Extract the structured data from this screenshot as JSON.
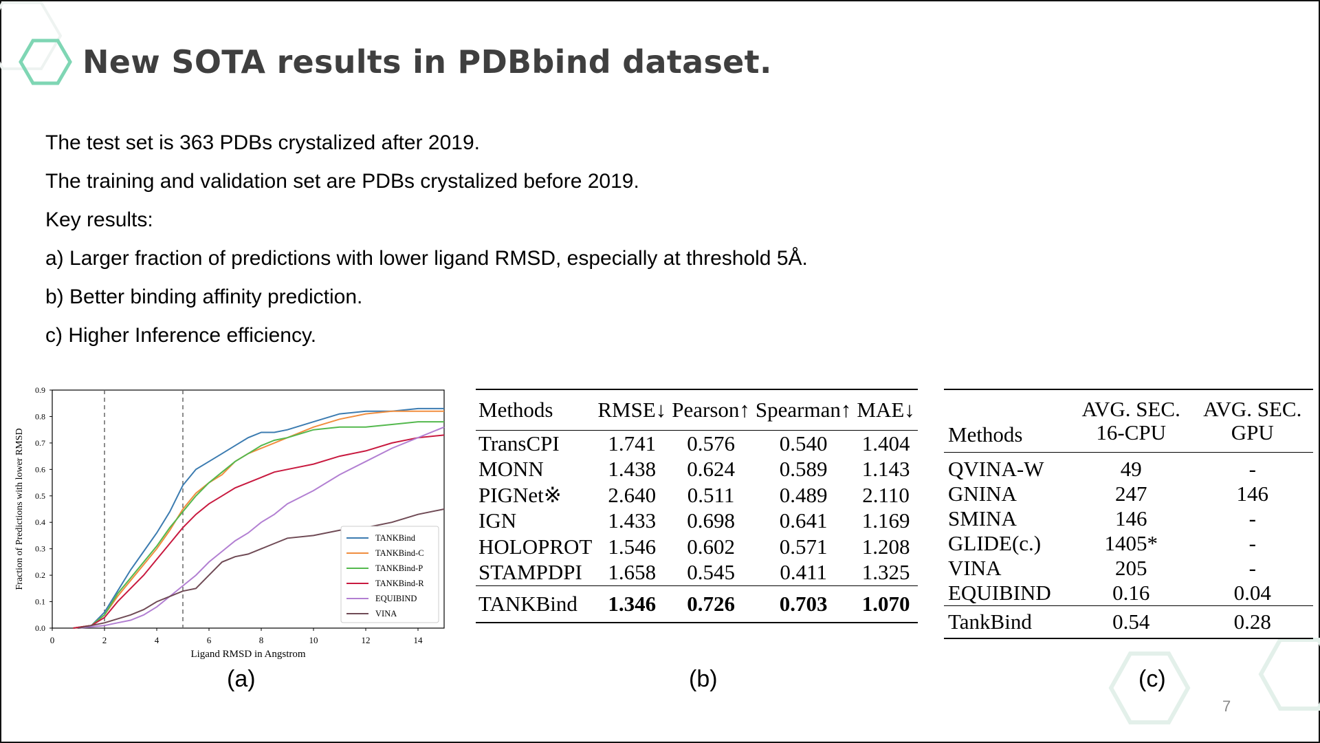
{
  "slide": {
    "title": "New SOTA results in PDBbind dataset.",
    "bullets": [
      "The test set is 363 PDBs crystalized after 2019.",
      "The training and validation set are PDBs crystalized before 2019.",
      "Key results:",
      "a) Larger fraction of predictions with lower ligand RMSD, especially at threshold 5Å.",
      "b) Better binding affinity prediction.",
      "c) Higher Inference efficiency."
    ],
    "captions": [
      "(a)",
      "(b)",
      "(c)"
    ],
    "page_number": "7",
    "accent_color": "#7fd6b4"
  },
  "chart_data": {
    "type": "line",
    "title": "",
    "xlabel": "Ligand RMSD in Angstrom",
    "ylabel": "Fraction of Predictions with lower RMSD",
    "xlim": [
      0,
      15
    ],
    "ylim": [
      0,
      0.9
    ],
    "xticks": [
      "0",
      "2",
      "4",
      "6",
      "8",
      "10",
      "12",
      "14"
    ],
    "yticks": [
      "0.0",
      "0.1",
      "0.2",
      "0.3",
      "0.4",
      "0.5",
      "0.6",
      "0.7",
      "0.8",
      "0.9"
    ],
    "vlines": [
      2,
      5
    ],
    "legend_position": "bottom-right",
    "grid": false,
    "series": [
      {
        "name": "TANKBind",
        "color": "#3b7bb0",
        "x": [
          0.8,
          1.5,
          2,
          2.5,
          3,
          3.5,
          4,
          4.5,
          5,
          5.5,
          6,
          6.5,
          7,
          7.5,
          8,
          8.5,
          9,
          10,
          11,
          12,
          13,
          14,
          15
        ],
        "y": [
          0,
          0.01,
          0.06,
          0.14,
          0.22,
          0.29,
          0.36,
          0.44,
          0.54,
          0.6,
          0.63,
          0.66,
          0.69,
          0.72,
          0.74,
          0.74,
          0.75,
          0.78,
          0.81,
          0.82,
          0.82,
          0.83,
          0.83
        ]
      },
      {
        "name": "TANKBind-C",
        "color": "#f08d3e",
        "x": [
          0.8,
          1.5,
          2,
          2.5,
          3,
          3.5,
          4,
          4.5,
          5,
          5.5,
          6,
          6.5,
          7,
          7.5,
          8,
          8.5,
          9,
          10,
          11,
          12,
          13,
          14,
          15
        ],
        "y": [
          0,
          0.01,
          0.05,
          0.12,
          0.18,
          0.24,
          0.3,
          0.37,
          0.45,
          0.51,
          0.55,
          0.58,
          0.63,
          0.66,
          0.68,
          0.7,
          0.72,
          0.76,
          0.79,
          0.81,
          0.82,
          0.82,
          0.82
        ]
      },
      {
        "name": "TANKBind-P",
        "color": "#53b84d",
        "x": [
          0.8,
          1.5,
          2,
          2.5,
          3,
          3.5,
          4,
          4.5,
          5,
          5.5,
          6,
          6.5,
          7,
          7.5,
          8,
          8.5,
          9,
          10,
          11,
          12,
          13,
          14,
          15
        ],
        "y": [
          0,
          0.01,
          0.05,
          0.13,
          0.19,
          0.25,
          0.31,
          0.38,
          0.44,
          0.5,
          0.55,
          0.59,
          0.63,
          0.66,
          0.69,
          0.71,
          0.72,
          0.75,
          0.76,
          0.76,
          0.77,
          0.78,
          0.78
        ]
      },
      {
        "name": "TANKBind-R",
        "color": "#c8193f",
        "x": [
          0.8,
          1.5,
          2,
          2.5,
          3,
          3.5,
          4,
          4.5,
          5,
          5.5,
          6,
          6.5,
          7,
          7.5,
          8,
          8.5,
          9,
          10,
          11,
          12,
          13,
          14,
          15
        ],
        "y": [
          0,
          0.01,
          0.04,
          0.1,
          0.15,
          0.2,
          0.26,
          0.32,
          0.38,
          0.43,
          0.47,
          0.5,
          0.53,
          0.55,
          0.57,
          0.59,
          0.6,
          0.62,
          0.65,
          0.67,
          0.7,
          0.72,
          0.73
        ]
      },
      {
        "name": "EQUIBIND",
        "color": "#b27fd2",
        "x": [
          1,
          2,
          2.5,
          3,
          3.5,
          4,
          4.5,
          5,
          5.5,
          6,
          6.5,
          7,
          7.5,
          8,
          8.5,
          9,
          10,
          11,
          12,
          13,
          14,
          15
        ],
        "y": [
          0,
          0.01,
          0.02,
          0.03,
          0.05,
          0.08,
          0.12,
          0.16,
          0.2,
          0.25,
          0.29,
          0.33,
          0.36,
          0.4,
          0.43,
          0.47,
          0.52,
          0.58,
          0.63,
          0.68,
          0.72,
          0.76
        ]
      },
      {
        "name": "VINA",
        "color": "#6f4a55",
        "x": [
          1,
          2,
          3,
          3.5,
          4,
          4.5,
          5,
          5.5,
          6,
          6.5,
          7,
          7.5,
          8,
          8.5,
          9,
          10,
          11,
          12,
          13,
          14,
          15
        ],
        "y": [
          0,
          0.02,
          0.05,
          0.07,
          0.1,
          0.12,
          0.14,
          0.15,
          0.2,
          0.25,
          0.27,
          0.28,
          0.3,
          0.32,
          0.34,
          0.35,
          0.37,
          0.38,
          0.4,
          0.43,
          0.45
        ]
      }
    ]
  },
  "table_b": {
    "headers": [
      "Methods",
      "RMSE↓",
      "Pearson↑",
      "Spearman↑",
      "MAE↓"
    ],
    "rows": [
      [
        "TransCPI",
        "1.741",
        "0.576",
        "0.540",
        "1.404"
      ],
      [
        "MONN",
        "1.438",
        "0.624",
        "0.589",
        "1.143"
      ],
      [
        "PIGNet※",
        "2.640",
        "0.511",
        "0.489",
        "2.110"
      ],
      [
        "IGN",
        "1.433",
        "0.698",
        "0.641",
        "1.169"
      ],
      [
        "HOLOPROT",
        "1.546",
        "0.602",
        "0.571",
        "1.208"
      ],
      [
        "STAMPDPI",
        "1.658",
        "0.545",
        "0.411",
        "1.325"
      ]
    ],
    "final_row": [
      "TANKBind",
      "1.346",
      "0.726",
      "0.703",
      "1.070"
    ]
  },
  "table_c": {
    "headers": [
      "Methods",
      "AVG. SEC.",
      "16-CPU",
      "AVG. SEC.",
      "GPU"
    ],
    "rows": [
      [
        "QVINA-W",
        "49",
        "-"
      ],
      [
        "GNINA",
        "247",
        "146"
      ],
      [
        "SMINA",
        "146",
        "-"
      ],
      [
        "GLIDE(c.)",
        "1405*",
        "-"
      ],
      [
        "VINA",
        "205",
        "-"
      ],
      [
        "EQUIBIND",
        "0.16",
        "0.04"
      ]
    ],
    "final_row": [
      "TankBind",
      "0.54",
      "0.28"
    ]
  }
}
